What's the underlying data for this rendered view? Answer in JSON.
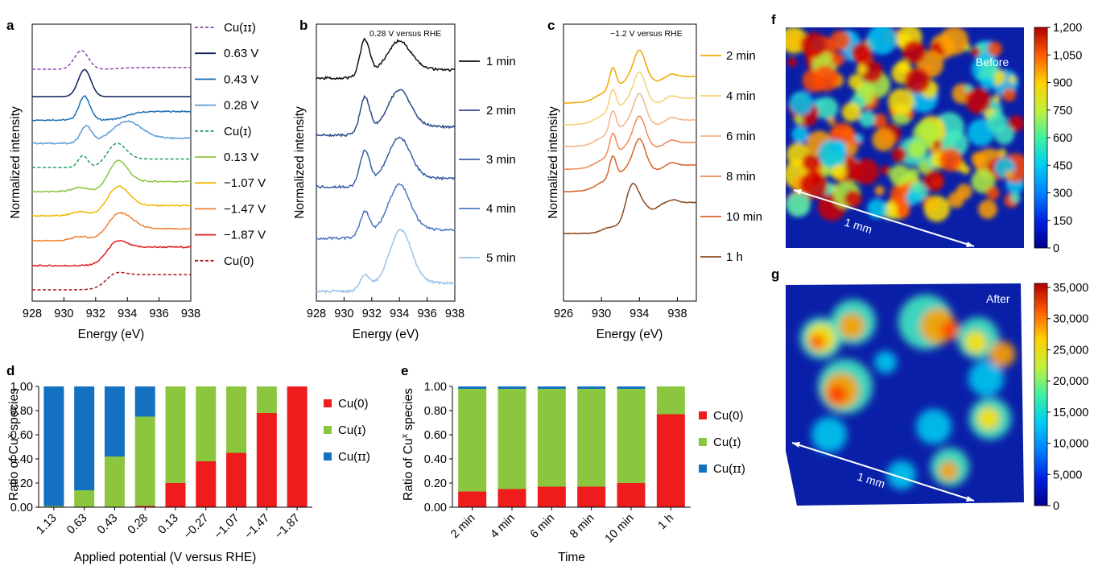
{
  "panel_labels": {
    "a": "a",
    "b": "b",
    "c": "c",
    "d": "d",
    "e": "e",
    "f": "f",
    "g": "g"
  },
  "colors": {
    "cu0": "#ee1c1c",
    "cu1": "#8cc63f",
    "cu2": "#1470c0"
  },
  "chart_data": [
    {
      "id": "a",
      "type": "line",
      "xlabel": "Energy (eV)",
      "ylabel": "Normalized intensity",
      "xlim": [
        928,
        938
      ],
      "xticks": [
        "928",
        "930",
        "932",
        "934",
        "936",
        "938"
      ],
      "series": [
        {
          "name": "Cu(ɪɪ)",
          "color": "#8e44ad",
          "dashed": true,
          "shape": "peak",
          "peak": 931.1,
          "width": 0.45,
          "height": 0.55,
          "edge": 933.5,
          "edge_height": 0.05
        },
        {
          "name": "0.63 V",
          "color": "#0c1f5b",
          "dashed": false,
          "shape": "peak",
          "peak": 931.3,
          "width": 0.4,
          "height": 0.8,
          "edge": 933.0,
          "edge_height": 0.0
        },
        {
          "name": "0.43 V",
          "color": "#1c6fb5",
          "dashed": false,
          "shape": "peak",
          "peak": 931.3,
          "width": 0.35,
          "height": 0.7,
          "edge": 934.0,
          "edge_height": 0.25
        },
        {
          "name": "0.28 V",
          "color": "#5b9bd5",
          "dashed": false,
          "shape": "double",
          "peak": 931.4,
          "width": 0.35,
          "height": 0.5,
          "edge": 934.0,
          "edge_height": 0.5
        },
        {
          "name": "Cu(ɪ)",
          "color": "#1aa05a",
          "dashed": true,
          "shape": "cu1",
          "peak": 931.2,
          "width": 0.3,
          "height": 0.35,
          "edge": 932.8,
          "edge_height": 0.5
        },
        {
          "name": "0.13 V",
          "color": "#8cc63f",
          "dashed": false,
          "shape": "edge",
          "peak": 933.4,
          "width": 0.6,
          "height": 0.65,
          "edge": 932.8,
          "edge_height": 0.3
        },
        {
          "name": "−1.07 V",
          "color": "#f0b800",
          "dashed": false,
          "shape": "edge",
          "peak": 933.4,
          "width": 0.7,
          "height": 0.6,
          "edge": 932.8,
          "edge_height": 0.3
        },
        {
          "name": "−1.47 V",
          "color": "#f07f30",
          "dashed": false,
          "shape": "edge",
          "peak": 933.5,
          "width": 0.8,
          "height": 0.5,
          "edge": 932.8,
          "edge_height": 0.35
        },
        {
          "name": "−1.87 V",
          "color": "#e02020",
          "dashed": false,
          "shape": "step",
          "peak": 933.3,
          "width": 0.6,
          "height": 0.25,
          "edge": 932.7,
          "edge_height": 0.55
        },
        {
          "name": "Cu(0)",
          "color": "#b01818",
          "dashed": true,
          "shape": "step",
          "peak": 933.2,
          "width": 0.6,
          "height": 0.12,
          "edge": 932.7,
          "edge_height": 0.45
        }
      ]
    },
    {
      "id": "b",
      "type": "line",
      "xlabel": "Energy (eV)",
      "ylabel": "Normalized intensity",
      "annotation": "0.28 V versus RHE",
      "xlim": [
        928,
        938
      ],
      "xticks": [
        "928",
        "930",
        "932",
        "934",
        "936",
        "938"
      ],
      "series": [
        {
          "name": "1 min",
          "color": "#111111",
          "peak": 931.5,
          "height": 0.9,
          "edge": 934.0,
          "edge_height": 0.6
        },
        {
          "name": "2 min",
          "color": "#2b4a8a",
          "peak": 931.5,
          "height": 0.9,
          "edge": 934.0,
          "edge_height": 0.8
        },
        {
          "name": "3 min",
          "color": "#3a5fa5",
          "peak": 931.5,
          "height": 0.85,
          "edge": 934.0,
          "edge_height": 0.9
        },
        {
          "name": "4 min",
          "color": "#4a76c2",
          "peak": 931.5,
          "height": 0.6,
          "edge": 934.0,
          "edge_height": 1.0
        },
        {
          "name": "5 min",
          "color": "#9cc3e6",
          "peak": 931.5,
          "height": 0.35,
          "edge": 934.1,
          "edge_height": 1.2
        }
      ]
    },
    {
      "id": "c",
      "type": "line",
      "xlabel": "Energy (eV)",
      "ylabel": "Normalized intensity",
      "annotation": "−1.2 V versus RHE",
      "xlim": [
        926,
        940
      ],
      "xticks": [
        "926",
        "930",
        "934",
        "938"
      ],
      "series": [
        {
          "name": "2 min",
          "color": "#f0a800",
          "peak": 931.2,
          "height": 0.5,
          "edge": 934.0,
          "edge_height": 0.75
        },
        {
          "name": "4 min",
          "color": "#f7d070",
          "peak": 931.2,
          "height": 0.5,
          "edge": 934.0,
          "edge_height": 0.75
        },
        {
          "name": "6 min",
          "color": "#f4b38a",
          "peak": 931.2,
          "height": 0.5,
          "edge": 934.0,
          "edge_height": 0.75
        },
        {
          "name": "8 min",
          "color": "#ee8a55",
          "peak": 931.2,
          "height": 0.5,
          "edge": 934.0,
          "edge_height": 0.75
        },
        {
          "name": "10 min",
          "color": "#d9632a",
          "peak": 931.2,
          "height": 0.5,
          "edge": 934.0,
          "edge_height": 0.75
        },
        {
          "name": "1 h",
          "color": "#8a4a20",
          "peak": 933.3,
          "height": 0.75,
          "edge": 932.4,
          "edge_height": 0.3
        }
      ]
    },
    {
      "id": "d",
      "type": "bar",
      "stacked": true,
      "xlabel": "Applied potential (V versus RHE)",
      "ylabel": "Ratio of Cu",
      "ylabel_sup": "x",
      "ylabel_tail": " species",
      "ylim": [
        0,
        1
      ],
      "yticks": [
        "0.00",
        "0.20",
        "0.40",
        "0.60",
        "0.80",
        "1.00"
      ],
      "categories": [
        "1.13",
        "0.63",
        "0.43",
        "0.28",
        "0.13",
        "−0.27",
        "−1.07",
        "−1.47",
        "−1.87"
      ],
      "series": [
        {
          "name": "Cu(0)",
          "values": [
            0.0,
            0.0,
            0.0,
            0.01,
            0.2,
            0.38,
            0.45,
            0.78,
            1.0
          ]
        },
        {
          "name": "Cu(ɪ)",
          "values": [
            0.01,
            0.14,
            0.42,
            0.74,
            0.8,
            0.62,
            0.55,
            0.22,
            0.0
          ]
        },
        {
          "name": "Cu(ɪɪ)",
          "values": [
            0.99,
            0.86,
            0.58,
            0.25,
            0.0,
            0.0,
            0.0,
            0.0,
            0.0
          ]
        }
      ]
    },
    {
      "id": "e",
      "type": "bar",
      "stacked": true,
      "xlabel": "Time",
      "ylabel": "Ratio of Cu",
      "ylabel_sup": "x",
      "ylabel_tail": " species",
      "ylim": [
        0,
        1
      ],
      "yticks": [
        "0.00",
        "0.20",
        "0.40",
        "0.60",
        "0.80",
        "1.00"
      ],
      "categories": [
        "2 min",
        "4 min",
        "6 min",
        "8 min",
        "10 min",
        "1 h"
      ],
      "series": [
        {
          "name": "Cu(0)",
          "values": [
            0.13,
            0.15,
            0.17,
            0.17,
            0.2,
            0.77
          ]
        },
        {
          "name": "Cu(ɪ)",
          "values": [
            0.85,
            0.83,
            0.81,
            0.81,
            0.78,
            0.23
          ]
        },
        {
          "name": "Cu(ɪɪ)",
          "values": [
            0.02,
            0.02,
            0.02,
            0.02,
            0.02,
            0.0
          ]
        }
      ]
    },
    {
      "id": "f",
      "type": "heatmap",
      "annotation": "Before",
      "scale_label": "1 mm",
      "colorbar_ticks": [
        "1,200",
        "1,050",
        "900",
        "750",
        "600",
        "450",
        "300",
        "150",
        "0"
      ]
    },
    {
      "id": "g",
      "type": "heatmap",
      "annotation": "After",
      "scale_label": "1 mm",
      "colorbar_ticks": [
        "35,000",
        "30,000",
        "25,000",
        "20,000",
        "15,000",
        "10,000",
        "5,000",
        "0"
      ]
    }
  ]
}
